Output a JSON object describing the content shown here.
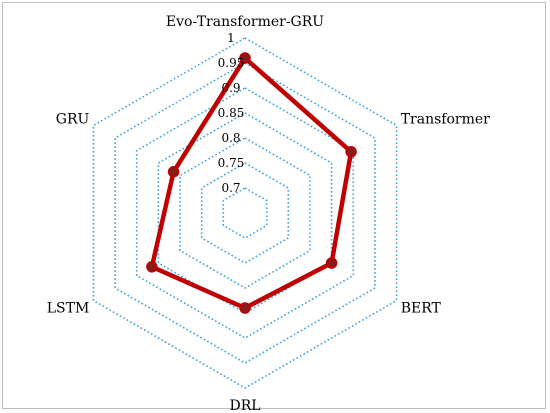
{
  "chart_data": {
    "type": "radar",
    "categories": [
      "Evo-Transformer-GRU",
      "Transformer",
      "BERT",
      "DRL",
      "LSTM",
      "GRU"
    ],
    "ticks": [
      0.7,
      0.75,
      0.8,
      0.85,
      0.9,
      0.95,
      1
    ],
    "tick_labels": [
      "0.7",
      "0.75",
      "0.8",
      "0.85",
      "0.9",
      "0.95",
      "1"
    ],
    "rmin": 0.65,
    "rmax": 1.0,
    "series": [
      {
        "values": [
          0.96,
          0.895,
          0.85,
          0.84,
          0.865,
          0.815
        ],
        "color": "#c00000",
        "marker_color": "#8b1a1a"
      }
    ],
    "grid_color": "#3fa3e6"
  }
}
